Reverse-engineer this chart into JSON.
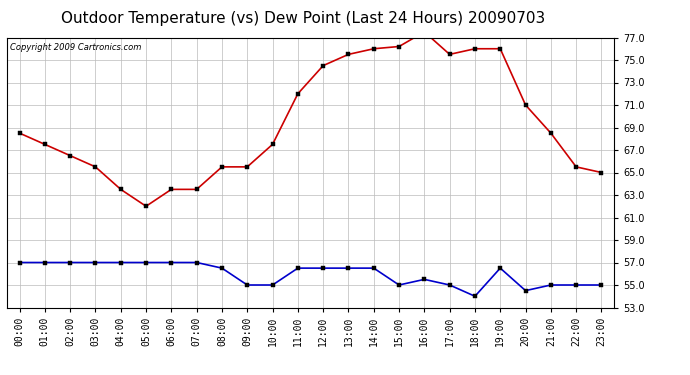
{
  "title": "Outdoor Temperature (vs) Dew Point (Last 24 Hours) 20090703",
  "copyright": "Copyright 2009 Cartronics.com",
  "hours": [
    "00:00",
    "01:00",
    "02:00",
    "03:00",
    "04:00",
    "05:00",
    "06:00",
    "07:00",
    "08:00",
    "09:00",
    "10:00",
    "11:00",
    "12:00",
    "13:00",
    "14:00",
    "15:00",
    "16:00",
    "17:00",
    "18:00",
    "19:00",
    "20:00",
    "21:00",
    "22:00",
    "23:00"
  ],
  "temp": [
    68.5,
    67.5,
    66.5,
    65.5,
    63.5,
    62.0,
    63.5,
    63.5,
    65.5,
    65.5,
    67.5,
    72.0,
    74.5,
    75.5,
    76.0,
    76.2,
    77.5,
    75.5,
    76.0,
    76.0,
    71.0,
    68.5,
    65.5,
    65.0
  ],
  "dew": [
    57.0,
    57.0,
    57.0,
    57.0,
    57.0,
    57.0,
    57.0,
    57.0,
    56.5,
    55.0,
    55.0,
    56.5,
    56.5,
    56.5,
    56.5,
    55.0,
    55.5,
    55.0,
    54.0,
    56.5,
    54.5,
    55.0,
    55.0,
    55.0
  ],
  "temp_color": "#cc0000",
  "dew_color": "#0000cc",
  "bg_color": "#ffffff",
  "plot_bg_color": "#ffffff",
  "grid_color": "#bbbbbb",
  "ylim": [
    53.0,
    77.0
  ],
  "yticks": [
    53.0,
    55.0,
    57.0,
    59.0,
    61.0,
    63.0,
    65.0,
    67.0,
    69.0,
    71.0,
    73.0,
    75.0,
    77.0
  ],
  "title_fontsize": 11,
  "copyright_fontsize": 6,
  "tick_fontsize": 7,
  "marker": "s",
  "marker_size": 2.5,
  "line_width": 1.2
}
